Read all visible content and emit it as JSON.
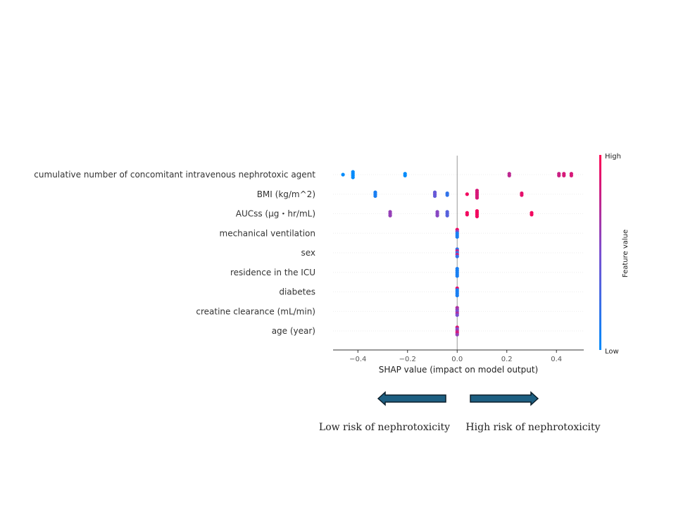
{
  "chart_data": {
    "type": "scatter",
    "subtype": "shap-beeswarm",
    "title": "",
    "xlabel": "SHAP value (impact on model output)",
    "xlim": [
      -0.5,
      0.51
    ],
    "xticks": [
      -0.4,
      -0.2,
      0.0,
      0.2,
      0.4
    ],
    "xtick_labels": [
      "−0.4",
      "−0.2",
      "0.0",
      "0.2",
      "0.4"
    ],
    "colorbar": {
      "label": "Feature value",
      "high": "High",
      "low": "Low",
      "high_color": "#ff0052",
      "low_color": "#008bfb"
    },
    "features": [
      {
        "name": "cumulative number of concomitant intravenous nephrotoxic agent",
        "points": [
          [
            -0.46,
            0.0
          ],
          [
            -0.42,
            0.0
          ],
          [
            -0.42,
            0.0
          ],
          [
            -0.42,
            0.0
          ],
          [
            -0.42,
            0.0
          ],
          [
            -0.21,
            0.0
          ],
          [
            -0.21,
            0.0
          ],
          [
            0.21,
            0.75
          ],
          [
            0.21,
            0.75
          ],
          [
            0.41,
            0.8
          ],
          [
            0.41,
            0.8
          ],
          [
            0.43,
            0.85
          ],
          [
            0.43,
            0.85
          ],
          [
            0.46,
            0.85
          ],
          [
            0.46,
            0.85
          ]
        ]
      },
      {
        "name": "BMI (kg/m^2)",
        "points": [
          [
            -0.33,
            0.1
          ],
          [
            -0.33,
            0.1
          ],
          [
            -0.33,
            0.1
          ],
          [
            -0.09,
            0.4
          ],
          [
            -0.09,
            0.45
          ],
          [
            -0.09,
            0.4
          ],
          [
            -0.04,
            0.2
          ],
          [
            -0.04,
            0.2
          ],
          [
            0.04,
            0.95
          ],
          [
            0.08,
            0.85
          ],
          [
            0.08,
            0.85
          ],
          [
            0.08,
            0.85
          ],
          [
            0.08,
            0.85
          ],
          [
            0.08,
            0.85
          ],
          [
            0.26,
            0.9
          ],
          [
            0.26,
            0.9
          ]
        ]
      },
      {
        "name": "AUCss (μg・hr/mL)",
        "points": [
          [
            -0.27,
            0.6
          ],
          [
            -0.27,
            0.6
          ],
          [
            -0.27,
            0.6
          ],
          [
            -0.08,
            0.55
          ],
          [
            -0.08,
            0.55
          ],
          [
            -0.08,
            0.55
          ],
          [
            -0.04,
            0.35
          ],
          [
            -0.04,
            0.35
          ],
          [
            -0.04,
            0.35
          ],
          [
            0.04,
            0.95
          ],
          [
            0.04,
            0.95
          ],
          [
            0.08,
            0.95
          ],
          [
            0.08,
            0.95
          ],
          [
            0.08,
            0.95
          ],
          [
            0.08,
            0.95
          ],
          [
            0.3,
            0.95
          ],
          [
            0.3,
            0.95
          ]
        ]
      },
      {
        "name": "mechanical ventilation",
        "points": [
          [
            0.0,
            0.95
          ],
          [
            0.0,
            0.6
          ],
          [
            0.0,
            0.1
          ],
          [
            0.0,
            0.1
          ],
          [
            0.0,
            0.1
          ]
        ]
      },
      {
        "name": "sex",
        "points": [
          [
            0.0,
            0.2
          ],
          [
            0.0,
            0.8
          ],
          [
            0.0,
            0.2
          ],
          [
            0.0,
            0.8
          ],
          [
            0.0,
            0.2
          ]
        ]
      },
      {
        "name": "residence in the ICU",
        "points": [
          [
            0.0,
            0.1
          ],
          [
            0.0,
            0.1
          ],
          [
            0.0,
            0.1
          ],
          [
            0.0,
            0.1
          ],
          [
            0.0,
            0.1
          ]
        ]
      },
      {
        "name": "diabetes",
        "points": [
          [
            0.0,
            0.9
          ],
          [
            0.0,
            0.1
          ],
          [
            0.0,
            0.1
          ],
          [
            0.0,
            0.1
          ],
          [
            0.0,
            0.1
          ]
        ]
      },
      {
        "name": "creatine clearance (mL/min)",
        "points": [
          [
            0.0,
            0.7
          ],
          [
            0.0,
            0.6
          ],
          [
            0.0,
            0.5
          ],
          [
            0.0,
            0.7
          ],
          [
            0.0,
            0.5
          ]
        ]
      },
      {
        "name": "age (year)",
        "points": [
          [
            0.0,
            0.85
          ],
          [
            0.0,
            0.5
          ],
          [
            0.0,
            0.7
          ],
          [
            0.0,
            0.85
          ],
          [
            0.0,
            0.6
          ]
        ]
      }
    ]
  },
  "annotations": {
    "left_arrow_label": "Low risk of nephrotoxicity",
    "right_arrow_label": "High risk of nephrotoxicity",
    "arrow_color": "#1d5f82"
  }
}
